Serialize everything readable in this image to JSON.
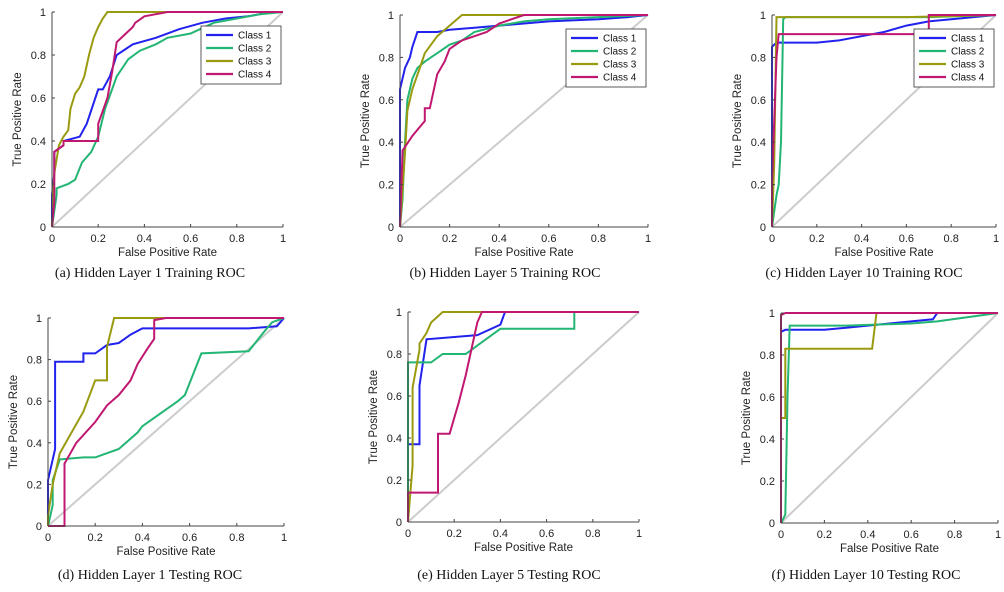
{
  "chart_data": [
    {
      "type": "line",
      "caption": "(a) Hidden Layer 1 Training ROC",
      "xlabel": "False Positive Rate",
      "ylabel": "True Positive Rate",
      "xlim": [
        0,
        1
      ],
      "ylim": [
        0,
        1
      ],
      "legend": true,
      "legend_placement": "top-right",
      "series": [
        {
          "name": "Class 1",
          "color": "#2222ee",
          "x": [
            0,
            0,
            0.01,
            0.01,
            0.05,
            0.05,
            0.12,
            0.15,
            0.2,
            0.22,
            0.25,
            0.28,
            0.35,
            0.45,
            0.55,
            0.65,
            0.75,
            0.85,
            0.95,
            1
          ],
          "y": [
            0,
            0.15,
            0.25,
            0.35,
            0.38,
            0.4,
            0.42,
            0.48,
            0.64,
            0.64,
            0.7,
            0.8,
            0.85,
            0.88,
            0.92,
            0.95,
            0.97,
            0.98,
            1,
            1
          ]
        },
        {
          "name": "Class 2",
          "color": "#22b573",
          "x": [
            0,
            0.02,
            0.02,
            0.07,
            0.1,
            0.13,
            0.17,
            0.2,
            0.23,
            0.28,
            0.33,
            0.38,
            0.45,
            0.5,
            0.6,
            0.7,
            0.8,
            0.9,
            1
          ],
          "y": [
            0,
            0.15,
            0.18,
            0.2,
            0.22,
            0.3,
            0.35,
            0.42,
            0.55,
            0.7,
            0.78,
            0.82,
            0.85,
            0.88,
            0.9,
            0.95,
            0.97,
            0.99,
            1
          ]
        },
        {
          "name": "Class 3",
          "color": "#9a9a10",
          "x": [
            0,
            0.01,
            0.03,
            0.05,
            0.07,
            0.08,
            0.1,
            0.12,
            0.14,
            0.16,
            0.18,
            0.2,
            0.22,
            0.24,
            0.27,
            0.3,
            0.35,
            0.4,
            0.6,
            1
          ],
          "y": [
            0,
            0.25,
            0.38,
            0.42,
            0.45,
            0.55,
            0.62,
            0.65,
            0.7,
            0.8,
            0.88,
            0.93,
            0.97,
            1,
            1,
            1,
            1,
            1,
            1,
            1
          ]
        },
        {
          "name": "Class 4",
          "color": "#c01870",
          "x": [
            0,
            0.01,
            0.01,
            0.05,
            0.05,
            0.2,
            0.2,
            0.24,
            0.26,
            0.28,
            0.32,
            0.35,
            0.36,
            0.4,
            0.5,
            0.6,
            0.7,
            0.8,
            1
          ],
          "y": [
            0,
            0.12,
            0.35,
            0.38,
            0.4,
            0.4,
            0.48,
            0.6,
            0.72,
            0.86,
            0.9,
            0.93,
            0.95,
            0.98,
            1,
            1,
            1,
            1,
            1
          ]
        }
      ]
    },
    {
      "type": "line",
      "caption": "(b) Hidden Layer 5 Training ROC",
      "xlabel": "False Positive Rate",
      "ylabel": "True Positive Rate",
      "xlim": [
        0,
        1
      ],
      "ylim": [
        0,
        1
      ],
      "legend": true,
      "legend_placement": "top-right",
      "series": [
        {
          "name": "Class 1",
          "color": "#2222ee",
          "x": [
            0,
            0,
            0.01,
            0.02,
            0.04,
            0.05,
            0.07,
            0.15,
            0.2,
            0.3,
            0.4,
            0.5,
            0.6,
            0.8,
            0.92,
            1
          ],
          "y": [
            0,
            0.65,
            0.7,
            0.75,
            0.8,
            0.85,
            0.92,
            0.92,
            0.93,
            0.94,
            0.95,
            0.96,
            0.97,
            0.98,
            0.99,
            1
          ]
        },
        {
          "name": "Class 2",
          "color": "#22b573",
          "x": [
            0,
            0.01,
            0.02,
            0.03,
            0.05,
            0.07,
            0.1,
            0.15,
            0.2,
            0.25,
            0.3,
            0.4,
            0.5,
            0.6,
            0.8,
            1
          ],
          "y": [
            0,
            0.13,
            0.4,
            0.6,
            0.7,
            0.75,
            0.78,
            0.82,
            0.86,
            0.88,
            0.92,
            0.95,
            0.97,
            0.98,
            0.99,
            1
          ]
        },
        {
          "name": "Class 3",
          "color": "#9a9a10",
          "x": [
            0,
            0.02,
            0.03,
            0.05,
            0.08,
            0.1,
            0.15,
            0.2,
            0.25,
            0.3,
            1
          ],
          "y": [
            0,
            0.35,
            0.55,
            0.65,
            0.75,
            0.82,
            0.9,
            0.95,
            1,
            1,
            1
          ]
        },
        {
          "name": "Class 4",
          "color": "#c01870",
          "x": [
            0,
            0.01,
            0.01,
            0.05,
            0.1,
            0.1,
            0.12,
            0.15,
            0.18,
            0.2,
            0.25,
            0.3,
            0.35,
            0.4,
            0.5,
            1
          ],
          "y": [
            0,
            0.35,
            0.36,
            0.43,
            0.5,
            0.56,
            0.56,
            0.72,
            0.78,
            0.84,
            0.88,
            0.9,
            0.92,
            0.96,
            1,
            1
          ]
        }
      ]
    },
    {
      "type": "line",
      "caption": "(c) Hidden Layer 10 Training ROC",
      "xlabel": "False Positive Rate",
      "ylabel": "True Positive Rate",
      "xlim": [
        0,
        1
      ],
      "ylim": [
        0,
        1
      ],
      "legend": true,
      "legend_placement": "top-right",
      "series": [
        {
          "name": "Class 1",
          "color": "#2222ee",
          "x": [
            0,
            0,
            0.02,
            0.2,
            0.3,
            0.4,
            0.5,
            0.6,
            0.7,
            0.8,
            1
          ],
          "y": [
            0,
            0.85,
            0.87,
            0.87,
            0.88,
            0.9,
            0.92,
            0.95,
            0.97,
            0.98,
            1
          ]
        },
        {
          "name": "Class 2",
          "color": "#22b573",
          "x": [
            0,
            0.02,
            0.03,
            0.04,
            0.05,
            0.06,
            0.1,
            0.4,
            0.7,
            1
          ],
          "y": [
            0,
            0.15,
            0.2,
            0.4,
            0.98,
            0.99,
            0.99,
            0.99,
            0.99,
            1
          ]
        },
        {
          "name": "Class 3",
          "color": "#9a9a10",
          "x": [
            0,
            0.01,
            0.02,
            0.04,
            0.6,
            1
          ],
          "y": [
            0,
            0.3,
            0.99,
            0.99,
            0.99,
            1
          ]
        },
        {
          "name": "Class 4",
          "color": "#c01870",
          "x": [
            0,
            0,
            0.01,
            0.02,
            0.03,
            0.7,
            0.7,
            1
          ],
          "y": [
            0,
            0.2,
            0.5,
            0.8,
            0.91,
            0.91,
            1,
            1
          ]
        }
      ]
    },
    {
      "type": "line",
      "caption": "(d) Hidden Layer 1 Testing ROC",
      "xlabel": "False Positive Rate",
      "ylabel": "True Positive Rate",
      "xlim": [
        0,
        1
      ],
      "ylim": [
        0,
        1
      ],
      "legend": false,
      "series": [
        {
          "name": "Class 1",
          "color": "#2222ee",
          "x": [
            0,
            0,
            0.03,
            0.03,
            0.15,
            0.15,
            0.2,
            0.25,
            0.3,
            0.35,
            0.4,
            0.6,
            0.85,
            0.97,
            1
          ],
          "y": [
            0,
            0.22,
            0.37,
            0.79,
            0.79,
            0.83,
            0.83,
            0.87,
            0.88,
            0.92,
            0.95,
            0.95,
            0.95,
            0.96,
            1
          ]
        },
        {
          "name": "Class 2",
          "color": "#22b573",
          "x": [
            0,
            0.02,
            0.02,
            0.05,
            0.15,
            0.2,
            0.3,
            0.33,
            0.38,
            0.4,
            0.55,
            0.58,
            0.65,
            0.85,
            0.92,
            0.95,
            1
          ],
          "y": [
            0,
            0.1,
            0.22,
            0.32,
            0.33,
            0.33,
            0.37,
            0.4,
            0.45,
            0.48,
            0.6,
            0.63,
            0.83,
            0.84,
            0.94,
            0.98,
            1
          ]
        },
        {
          "name": "Class 3",
          "color": "#9a9a10",
          "x": [
            0,
            0,
            0.02,
            0.05,
            0.1,
            0.15,
            0.2,
            0.25,
            0.25,
            0.28,
            0.45,
            1
          ],
          "y": [
            0,
            0.05,
            0.2,
            0.35,
            0.45,
            0.55,
            0.7,
            0.7,
            0.86,
            1,
            1,
            1
          ]
        },
        {
          "name": "Class 4",
          "color": "#c01870",
          "x": [
            0,
            0.07,
            0.07,
            0.12,
            0.2,
            0.25,
            0.3,
            0.35,
            0.38,
            0.42,
            0.45,
            0.45,
            0.5,
            1
          ],
          "y": [
            0,
            0,
            0.3,
            0.4,
            0.5,
            0.58,
            0.63,
            0.7,
            0.78,
            0.85,
            0.9,
            0.99,
            1,
            1
          ]
        }
      ]
    },
    {
      "type": "line",
      "caption": "(e) Hidden Layer 5 Testing ROC",
      "xlabel": "False Positive Rate",
      "ylabel": "True Positive Rate",
      "xlim": [
        0,
        1
      ],
      "ylim": [
        0,
        1
      ],
      "legend": false,
      "series": [
        {
          "name": "Class 1",
          "color": "#2222ee",
          "x": [
            0,
            0,
            0.05,
            0.05,
            0.08,
            0.3,
            0.4,
            0.42,
            0.5,
            1
          ],
          "y": [
            0,
            0.37,
            0.37,
            0.65,
            0.87,
            0.89,
            0.94,
            1,
            1,
            1
          ]
        },
        {
          "name": "Class 2",
          "color": "#22b573",
          "x": [
            0,
            0,
            0.1,
            0.15,
            0.25,
            0.3,
            0.35,
            0.4,
            0.58,
            0.72,
            0.72,
            1
          ],
          "y": [
            0,
            0.76,
            0.76,
            0.8,
            0.8,
            0.84,
            0.88,
            0.92,
            0.92,
            0.92,
            1,
            1
          ]
        },
        {
          "name": "Class 3",
          "color": "#9a9a10",
          "x": [
            0,
            0.02,
            0.02,
            0.05,
            0.05,
            0.08,
            0.1,
            0.15,
            1
          ],
          "y": [
            0,
            0.27,
            0.64,
            0.82,
            0.85,
            0.9,
            0.95,
            1,
            1
          ]
        },
        {
          "name": "Class 4",
          "color": "#c01870",
          "x": [
            0,
            0,
            0.13,
            0.13,
            0.18,
            0.22,
            0.25,
            0.28,
            0.3,
            0.32,
            0.35,
            0.5,
            1
          ],
          "y": [
            0,
            0.14,
            0.14,
            0.42,
            0.42,
            0.57,
            0.7,
            0.85,
            0.95,
            1,
            1,
            1,
            1
          ]
        }
      ]
    },
    {
      "type": "line",
      "caption": "(f) Hidden Layer 10 Testing ROC",
      "xlabel": "False Positive Rate",
      "ylabel": "True Positive Rate",
      "xlim": [
        0,
        1
      ],
      "ylim": [
        0,
        1
      ],
      "legend": false,
      "series": [
        {
          "name": "Class 1",
          "color": "#2222ee",
          "x": [
            0,
            0,
            0.02,
            0.2,
            0.3,
            0.5,
            0.7,
            0.72,
            1
          ],
          "y": [
            0,
            0.91,
            0.92,
            0.92,
            0.93,
            0.95,
            0.97,
            1,
            1
          ]
        },
        {
          "name": "Class 2",
          "color": "#22b573",
          "x": [
            0,
            0.01,
            0.02,
            0.03,
            0.04,
            0.3,
            0.6,
            0.72,
            1
          ],
          "y": [
            0,
            0.02,
            0.04,
            0.6,
            0.94,
            0.94,
            0.95,
            0.96,
            1
          ]
        },
        {
          "name": "Class 3",
          "color": "#9a9a10",
          "x": [
            0,
            0,
            0.02,
            0.02,
            0.42,
            0.44,
            1
          ],
          "y": [
            0,
            0.5,
            0.5,
            0.83,
            0.83,
            1,
            1
          ]
        },
        {
          "name": "Class 4",
          "color": "#c01870",
          "x": [
            0,
            0,
            0.02,
            1
          ],
          "y": [
            0,
            0.99,
            1,
            1
          ]
        }
      ]
    }
  ]
}
